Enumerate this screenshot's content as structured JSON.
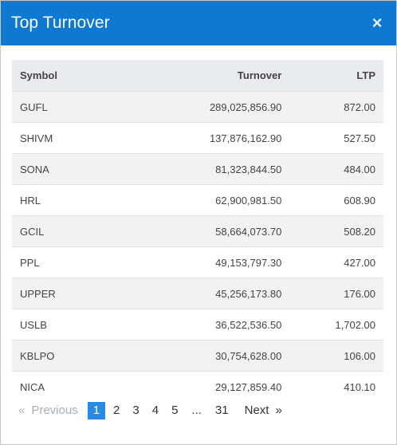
{
  "modal": {
    "title": "Top Turnover",
    "close_symbol": "×"
  },
  "table": {
    "headers": {
      "symbol": "Symbol",
      "turnover": "Turnover",
      "ltp": "LTP"
    },
    "rows": [
      {
        "symbol": "GUFL",
        "turnover": "289,025,856.90",
        "ltp": "872.00"
      },
      {
        "symbol": "SHIVM",
        "turnover": "137,876,162.90",
        "ltp": "527.50"
      },
      {
        "symbol": "SONA",
        "turnover": "81,323,844.50",
        "ltp": "484.00"
      },
      {
        "symbol": "HRL",
        "turnover": "62,900,981.50",
        "ltp": "608.90"
      },
      {
        "symbol": "GCIL",
        "turnover": "58,664,073.70",
        "ltp": "508.20"
      },
      {
        "symbol": "PPL",
        "turnover": "49,153,797.30",
        "ltp": "427.00"
      },
      {
        "symbol": "UPPER",
        "turnover": "45,256,173.80",
        "ltp": "176.00"
      },
      {
        "symbol": "USLB",
        "turnover": "36,522,536.50",
        "ltp": "1,702.00"
      },
      {
        "symbol": "KBLPO",
        "turnover": "30,754,628.00",
        "ltp": "106.00"
      },
      {
        "symbol": "NICA",
        "turnover": "29,127,859.40",
        "ltp": "410.10"
      }
    ]
  },
  "pagination": {
    "prev_arrow": "«",
    "prev_label": "Previous",
    "pages": [
      "1",
      "2",
      "3",
      "4",
      "5"
    ],
    "active_page": "1",
    "ellipsis": "...",
    "last_page": "31",
    "next_label": "Next",
    "next_arrow": "»"
  },
  "colors": {
    "header_bg": "#0f78d1",
    "active_page_bg": "#2a8ae0"
  }
}
